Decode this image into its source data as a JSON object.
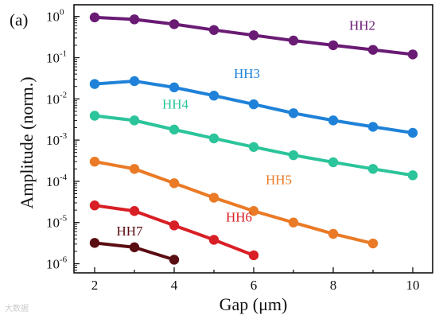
{
  "panel_label": "(a)",
  "watermark": "大数据",
  "chart_data": {
    "type": "line",
    "xlabel": "Gap (μm)",
    "ylabel": "Amplitude (norm.)",
    "xlim": [
      1.5,
      10.5
    ],
    "ylim": [
      6e-07,
      1.6
    ],
    "yscale": "log",
    "x_ticks": [
      2,
      4,
      6,
      8,
      10
    ],
    "y_ticks": [
      {
        "value": 1e-06,
        "base": "10",
        "exp": "-6"
      },
      {
        "value": 1e-05,
        "base": "10",
        "exp": "-5"
      },
      {
        "value": 0.0001,
        "base": "10",
        "exp": "-4"
      },
      {
        "value": 0.001,
        "base": "10",
        "exp": "-3"
      },
      {
        "value": 0.01,
        "base": "10",
        "exp": "-2"
      },
      {
        "value": 0.1,
        "base": "10",
        "exp": "-1"
      },
      {
        "value": 1,
        "base": "10",
        "exp": "0"
      }
    ],
    "grid": false,
    "series": [
      {
        "name": "HH2",
        "color": "#6a1b74",
        "x": [
          2,
          3,
          4,
          5,
          6,
          7,
          8,
          9,
          10
        ],
        "y": [
          0.95,
          0.85,
          0.65,
          0.47,
          0.35,
          0.26,
          0.2,
          0.155,
          0.12
        ],
        "label_pos": [
          8.4,
          0.47
        ]
      },
      {
        "name": "HH3",
        "color": "#1f82d8",
        "x": [
          2,
          3,
          4,
          5,
          6,
          7,
          8,
          9,
          10
        ],
        "y": [
          0.023,
          0.027,
          0.019,
          0.012,
          0.0074,
          0.0045,
          0.003,
          0.0021,
          0.0015
        ],
        "label_pos": [
          5.5,
          0.032
        ]
      },
      {
        "name": "HH4",
        "color": "#2cc49a",
        "x": [
          2,
          3,
          4,
          5,
          6,
          7,
          8,
          9,
          10
        ],
        "y": [
          0.0039,
          0.003,
          0.0018,
          0.0011,
          0.00068,
          0.00043,
          0.00029,
          0.0002,
          0.00014
        ],
        "label_pos": [
          3.7,
          0.0058
        ]
      },
      {
        "name": "HH5",
        "color": "#ea7a26",
        "x": [
          2,
          3,
          4,
          5,
          6,
          7,
          8,
          9
        ],
        "y": [
          0.0003,
          0.0002,
          9e-05,
          4e-05,
          1.9e-05,
          1e-05,
          5.3e-06,
          3.1e-06
        ],
        "label_pos": [
          6.3,
          8.5e-05
        ]
      },
      {
        "name": "HH6",
        "color": "#d81f25",
        "x": [
          2,
          3,
          4,
          5,
          6
        ],
        "y": [
          2.6e-05,
          1.9e-05,
          8.5e-06,
          3.8e-06,
          1.6e-06
        ],
        "label_pos": [
          5.3,
          1.05e-05
        ]
      },
      {
        "name": "HH7",
        "color": "#5a0d12",
        "x": [
          2,
          3,
          4
        ],
        "y": [
          3.2e-06,
          2.5e-06,
          1.25e-06
        ],
        "label_pos": [
          2.55,
          4.8e-06
        ]
      }
    ]
  }
}
